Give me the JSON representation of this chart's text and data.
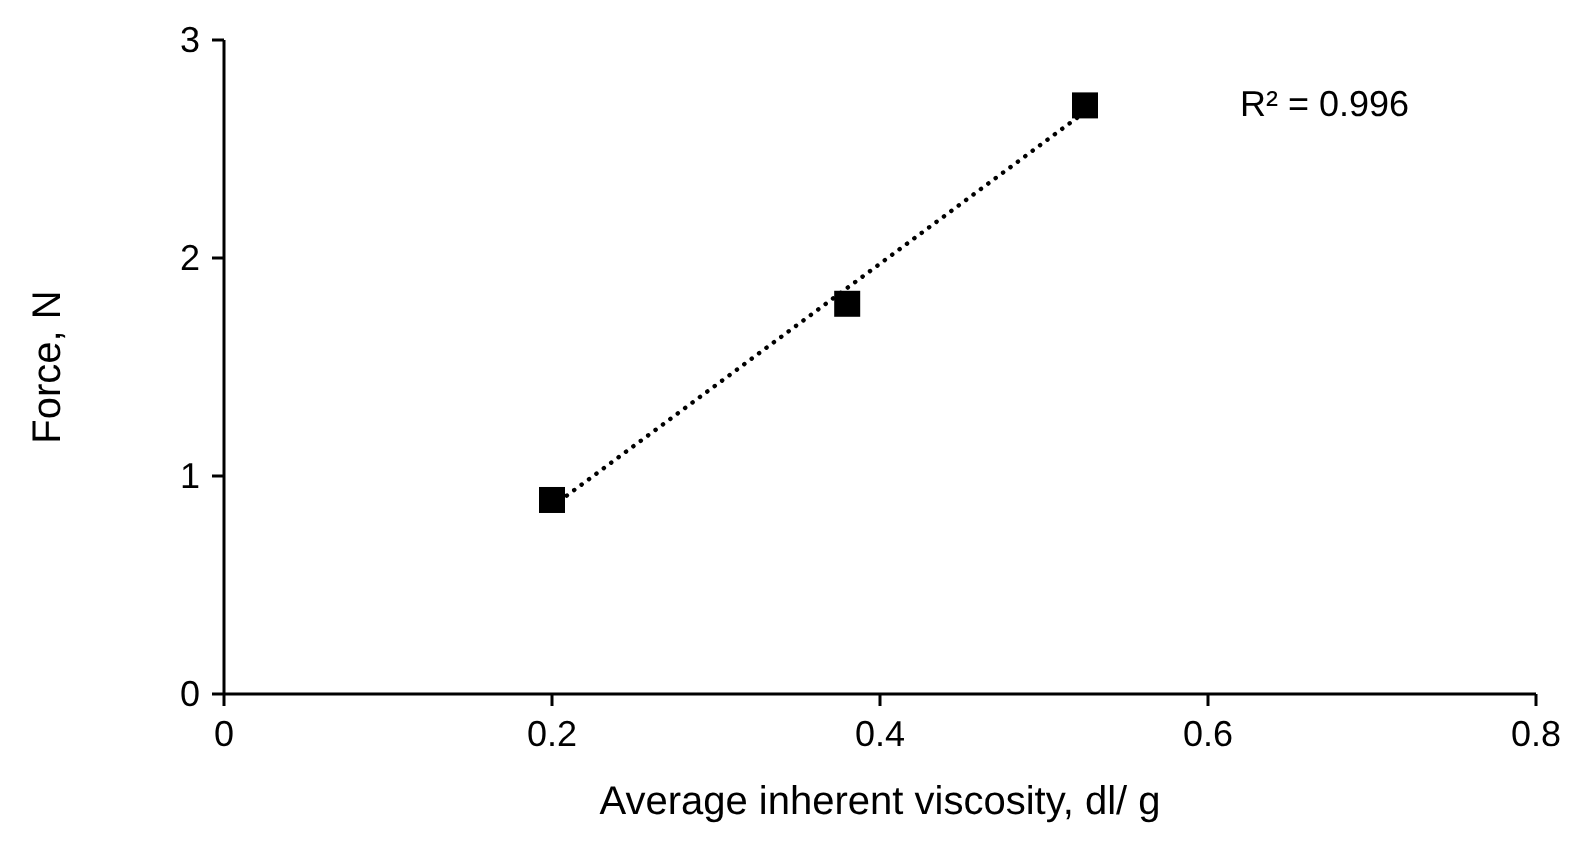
{
  "chart_data": {
    "type": "scatter",
    "xlabel": "Average inherent viscosity, dl/ g",
    "ylabel": "Force, N",
    "annotations": [
      "R² = 0.996"
    ],
    "xlim": [
      0,
      0.8
    ],
    "ylim": [
      0,
      3
    ],
    "xticks": [
      0,
      0.2,
      0.4,
      0.6,
      0.8
    ],
    "yticks": [
      0,
      1,
      2,
      3
    ],
    "grid": false,
    "series": [
      {
        "color": "#000000",
        "marker": "square",
        "x": [
          0.2,
          0.38,
          0.525
        ],
        "values": [
          0.89,
          1.79,
          2.7
        ]
      },
      {
        "type": "line",
        "color": "#000000",
        "marker": "none",
        "line_style": "dotted",
        "x": [
          0.2,
          0.525
        ],
        "values": [
          0.86,
          2.67
        ]
      }
    ]
  }
}
